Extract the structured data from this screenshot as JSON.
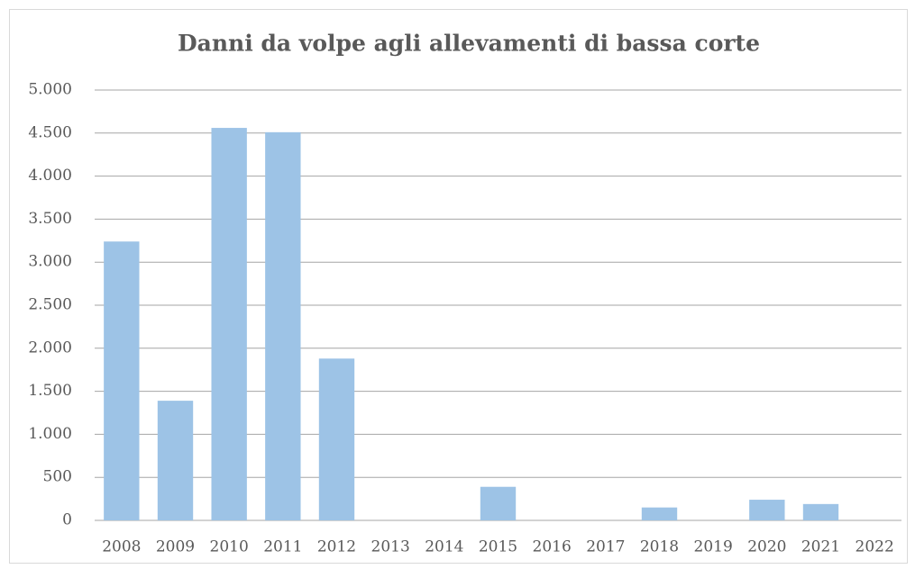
{
  "chart_data": {
    "type": "bar",
    "title": "Danni da volpe agli allevamenti di bassa corte",
    "categories": [
      "2008",
      "2009",
      "2010",
      "2011",
      "2012",
      "2013",
      "2014",
      "2015",
      "2016",
      "2017",
      "2018",
      "2019",
      "2020",
      "2021",
      "2022"
    ],
    "values": [
      3240,
      1390,
      4560,
      4510,
      1880,
      0,
      0,
      390,
      0,
      0,
      150,
      0,
      240,
      190,
      0
    ],
    "color": "#9dc3e6",
    "ylim": [
      0,
      5000
    ],
    "yticks": [
      0,
      500,
      {
        "value": 1000,
        "label": "1.000"
      },
      {
        "value": 1500,
        "label": "1.500"
      },
      {
        "value": 2000,
        "label": "2.000"
      },
      {
        "value": 2500,
        "label": "2.500"
      },
      {
        "value": 3000,
        "label": "3.000"
      },
      {
        "value": 3500,
        "label": "3.500"
      },
      {
        "value": 4000,
        "label": "4.000"
      },
      {
        "value": 4500,
        "label": "4.500"
      },
      {
        "value": 5000,
        "label": "5.000"
      }
    ],
    "grid": true
  }
}
